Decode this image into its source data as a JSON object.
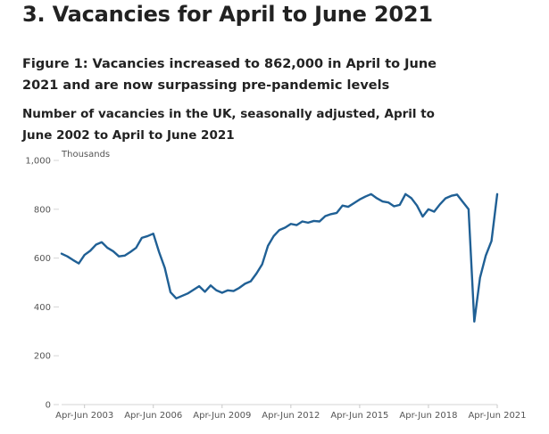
{
  "section": {
    "title": "3.  Vacancies for April to June 2021"
  },
  "figure": {
    "title": "Figure 1: Vacancies increased to 862,000 in April to June 2021 and are now surpassing pre-pandemic levels"
  },
  "chart_data": {
    "type": "line",
    "title": "Number of vacancies in the UK, seasonally adjusted, April to June 2002 to April to June 2021",
    "ylabel": "Thousands",
    "xlabel": "",
    "ylim": [
      0,
      1000
    ],
    "yticks": [
      0,
      200,
      400,
      600,
      800,
      1000
    ],
    "ytick_labels": [
      "0",
      "200",
      "400",
      "600",
      "800",
      "1,000"
    ],
    "xtick_labels": [
      "Apr-Jun 2003",
      "Apr-Jun 2006",
      "Apr-Jun 2009",
      "Apr-Jun 2012",
      "Apr-Jun 2015",
      "Apr-Jun 2018",
      "Apr-Jun 2021"
    ],
    "grid": false,
    "line_color": "#206095",
    "series": [
      {
        "name": "",
        "x": [
          "Apr-Jun 2002",
          "Jul-Sep 2002",
          "Oct-Dec 2002",
          "Jan-Mar 2003",
          "Apr-Jun 2003",
          "Jul-Sep 2003",
          "Oct-Dec 2003",
          "Jan-Mar 2004",
          "Apr-Jun 2004",
          "Jul-Sep 2004",
          "Oct-Dec 2004",
          "Jan-Mar 2005",
          "Apr-Jun 2005",
          "Jul-Sep 2005",
          "Oct-Dec 2005",
          "Jan-Mar 2006",
          "Apr-Jun 2006",
          "Jul-Sep 2006",
          "Oct-Dec 2006",
          "Jan-Mar 2007",
          "Apr-Jun 2007",
          "Jul-Sep 2007",
          "Oct-Dec 2007",
          "Jan-Mar 2008",
          "Apr-Jun 2008",
          "Jul-Sep 2008",
          "Oct-Dec 2008",
          "Jan-Mar 2009",
          "Apr-Jun 2009",
          "Jul-Sep 2009",
          "Oct-Dec 2009",
          "Jan-Mar 2010",
          "Apr-Jun 2010",
          "Jul-Sep 2010",
          "Oct-Dec 2010",
          "Jan-Mar 2011",
          "Apr-Jun 2011",
          "Jul-Sep 2011",
          "Oct-Dec 2011",
          "Jan-Mar 2012",
          "Apr-Jun 2012",
          "Jul-Sep 2012",
          "Oct-Dec 2012",
          "Jan-Mar 2013",
          "Apr-Jun 2013",
          "Jul-Sep 2013",
          "Oct-Dec 2013",
          "Jan-Mar 2014",
          "Apr-Jun 2014",
          "Jul-Sep 2014",
          "Oct-Dec 2014",
          "Jan-Mar 2015",
          "Apr-Jun 2015",
          "Jul-Sep 2015",
          "Oct-Dec 2015",
          "Jan-Mar 2016",
          "Apr-Jun 2016",
          "Jul-Sep 2016",
          "Oct-Dec 2016",
          "Jan-Mar 2017",
          "Apr-Jun 2017",
          "Jul-Sep 2017",
          "Oct-Dec 2017",
          "Jan-Mar 2018",
          "Apr-Jun 2018",
          "Jul-Sep 2018",
          "Oct-Dec 2018",
          "Jan-Mar 2019",
          "Apr-Jun 2019",
          "Jul-Sep 2019",
          "Oct-Dec 2019",
          "Jan-Mar 2020",
          "Apr-Jun 2020",
          "Jul-Sep 2020",
          "Oct-Dec 2020",
          "Jan-Mar 2021",
          "Apr-Jun 2021"
        ],
        "values": [
          618,
          607,
          592,
          578,
          613,
          630,
          655,
          665,
          642,
          628,
          607,
          610,
          625,
          642,
          683,
          690,
          700,
          625,
          560,
          460,
          435,
          445,
          455,
          470,
          485,
          462,
          488,
          468,
          458,
          468,
          465,
          478,
          495,
          505,
          537,
          575,
          650,
          690,
          715,
          725,
          740,
          735,
          750,
          745,
          752,
          750,
          772,
          780,
          785,
          815,
          810,
          825,
          840,
          852,
          862,
          845,
          832,
          828,
          812,
          818,
          862,
          846,
          815,
          770,
          800,
          790,
          820,
          845,
          855,
          860,
          830,
          800,
          340,
          520,
          610,
          670,
          862
        ]
      }
    ]
  }
}
